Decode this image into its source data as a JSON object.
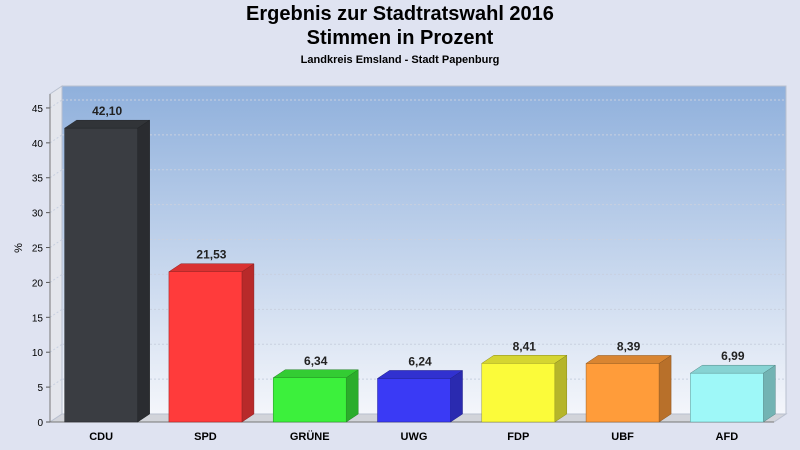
{
  "chart_data": {
    "type": "bar",
    "title": "Ergebnis zur Stadtratswahl 2016",
    "title_line2": "Stimmen in Prozent",
    "subtitle": "Landkreis Emsland - Stadt Papenburg",
    "ylabel": "%",
    "xlabel": "",
    "ylim": [
      0,
      47
    ],
    "yticks": [
      0,
      5,
      10,
      15,
      20,
      25,
      30,
      35,
      40,
      45
    ],
    "grid": true,
    "categories": [
      "CDU",
      "SPD",
      "GRÜNE",
      "UWG",
      "FDP",
      "UBF",
      "AFD"
    ],
    "values": [
      42.1,
      21.53,
      6.34,
      6.24,
      8.41,
      8.39,
      6.99
    ],
    "value_labels": [
      "42,10",
      "21,53",
      "6,34",
      "6,24",
      "8,41",
      "8,39",
      "6,99"
    ],
    "colors": [
      "#3a3d42",
      "#ff3b3b",
      "#3cf03c",
      "#3a3af5",
      "#fbfb3a",
      "#ff9c3a",
      "#9ef8f8"
    ]
  }
}
